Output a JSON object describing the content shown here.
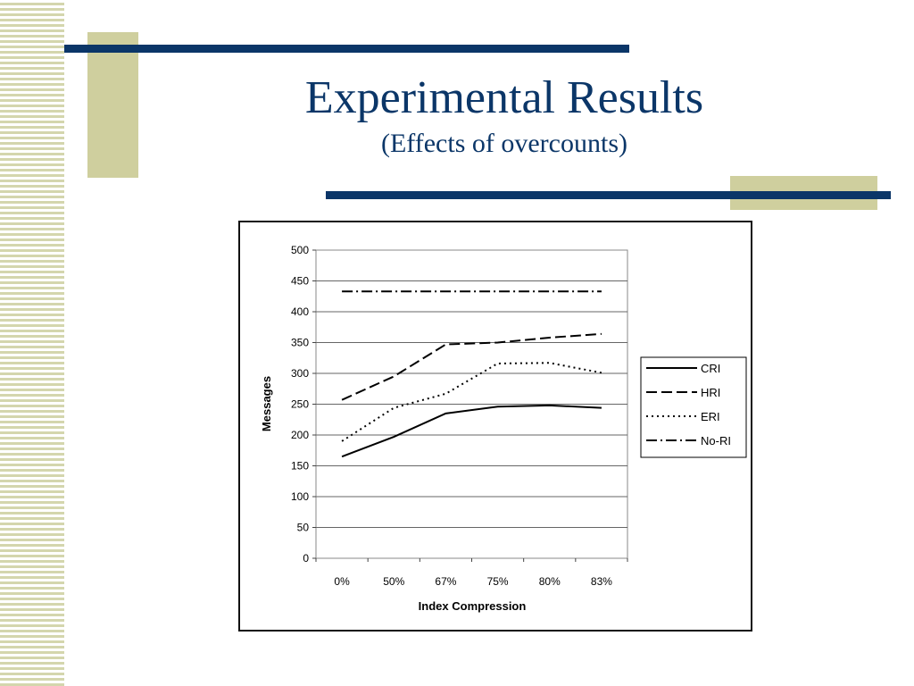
{
  "slide": {
    "title": "Experimental Results",
    "subtitle": "(Effects of overcounts)",
    "colors": {
      "title": "#0b3668",
      "accent_bar": "#0b3668",
      "accent_block": "#cfcf9e"
    }
  },
  "chart_data": {
    "type": "line",
    "title": "",
    "xlabel": "Index Compression",
    "ylabel": "Messages",
    "categories": [
      "0%",
      "50%",
      "67%",
      "75%",
      "80%",
      "83%"
    ],
    "ylim": [
      0,
      500
    ],
    "yticks": [
      0,
      50,
      100,
      150,
      200,
      250,
      300,
      350,
      400,
      450,
      500
    ],
    "grid": true,
    "legend_position": "right",
    "series": [
      {
        "name": "CRI",
        "style": "solid",
        "values": [
          165,
          197,
          235,
          246,
          248,
          244
        ]
      },
      {
        "name": "HRI",
        "style": "dashed",
        "values": [
          257,
          295,
          347,
          350,
          358,
          364
        ]
      },
      {
        "name": "ERI",
        "style": "dotted",
        "values": [
          190,
          244,
          267,
          316,
          317,
          301
        ]
      },
      {
        "name": "No-RI",
        "style": "dashdot",
        "values": [
          433,
          433,
          433,
          433,
          433,
          433
        ]
      }
    ]
  }
}
